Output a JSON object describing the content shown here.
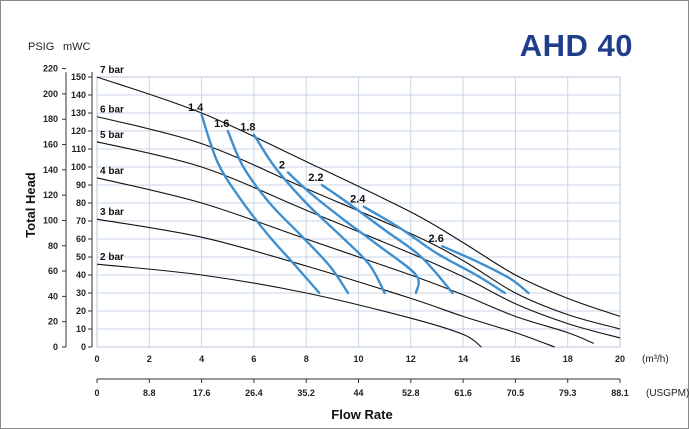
{
  "title": "AHD 40",
  "chart_data": {
    "type": "line",
    "title": "AHD 40",
    "xlabel": "Flow Rate",
    "ylabel": "Total Head",
    "x_unit_primary": "(m³/h)",
    "x_unit_secondary": "(USGPM)",
    "y_unit_psig": "PSIG",
    "y_unit_mwc": "mWC",
    "xlim": [
      0,
      20
    ],
    "ylim": [
      0,
      150
    ],
    "x_ticks_m3h": [
      "0",
      "2",
      "4",
      "6",
      "8",
      "10",
      "12",
      "14",
      "16",
      "18",
      "20"
    ],
    "x_ticks_usgpm": [
      "0",
      "8.8",
      "17.6",
      "26.4",
      "35.2",
      "44",
      "52.8",
      "61.6",
      "70.5",
      "79.3",
      "88.1"
    ],
    "y_ticks_mwc": [
      "0",
      "10",
      "20",
      "30",
      "40",
      "50",
      "60",
      "70",
      "80",
      "90",
      "100",
      "110",
      "120",
      "130",
      "140",
      "150"
    ],
    "y_ticks_psig": [
      "0",
      "20",
      "40",
      "60",
      "80",
      "100",
      "120",
      "140",
      "160",
      "180",
      "200",
      "220"
    ],
    "grid": true,
    "pressure_series": [
      {
        "name": "7 bar",
        "points": [
          [
            0,
            150
          ],
          [
            4,
            130
          ],
          [
            8,
            103
          ],
          [
            12,
            75
          ],
          [
            14,
            58
          ],
          [
            16,
            40
          ],
          [
            18,
            27
          ],
          [
            20,
            17
          ]
        ]
      },
      {
        "name": "6 bar",
        "points": [
          [
            0,
            128
          ],
          [
            4,
            113
          ],
          [
            8,
            88
          ],
          [
            12,
            63
          ],
          [
            14,
            48
          ],
          [
            16,
            30
          ],
          [
            18,
            18
          ],
          [
            20,
            10
          ]
        ]
      },
      {
        "name": "5 bar",
        "points": [
          [
            0,
            114
          ],
          [
            4,
            100
          ],
          [
            8,
            76
          ],
          [
            12,
            52
          ],
          [
            14,
            39
          ],
          [
            16,
            24
          ],
          [
            18,
            13
          ],
          [
            20,
            5
          ]
        ]
      },
      {
        "name": "4 bar",
        "points": [
          [
            0,
            94
          ],
          [
            4,
            80
          ],
          [
            8,
            60
          ],
          [
            12,
            40
          ],
          [
            14,
            29
          ],
          [
            16,
            17
          ],
          [
            18,
            8
          ],
          [
            19,
            2
          ]
        ]
      },
      {
        "name": "3 bar",
        "points": [
          [
            0,
            71
          ],
          [
            4,
            61
          ],
          [
            8,
            45
          ],
          [
            12,
            27
          ],
          [
            14,
            17
          ],
          [
            16,
            8
          ],
          [
            17.5,
            0
          ]
        ]
      },
      {
        "name": "2 bar",
        "points": [
          [
            0,
            46
          ],
          [
            4,
            40
          ],
          [
            8,
            30
          ],
          [
            12,
            16
          ],
          [
            14,
            7
          ],
          [
            14.7,
            0
          ]
        ]
      }
    ],
    "air_consumption_series": [
      {
        "name": "1.4",
        "points": [
          [
            4,
            129
          ],
          [
            4.6,
            103
          ],
          [
            5.4,
            84
          ],
          [
            6.5,
            63
          ],
          [
            7.6,
            45
          ],
          [
            8.5,
            30
          ]
        ]
      },
      {
        "name": "1.6",
        "points": [
          [
            5,
            120
          ],
          [
            5.6,
            100
          ],
          [
            6.6,
            80
          ],
          [
            7.8,
            62
          ],
          [
            8.9,
            45
          ],
          [
            9.6,
            30
          ]
        ]
      },
      {
        "name": "1.8",
        "points": [
          [
            6,
            118
          ],
          [
            6.8,
            100
          ],
          [
            8.0,
            80
          ],
          [
            9.3,
            62
          ],
          [
            10.4,
            46
          ],
          [
            11.0,
            30
          ]
        ]
      },
      {
        "name": "2",
        "points": [
          [
            7.3,
            97
          ],
          [
            8.2,
            85
          ],
          [
            9.5,
            70
          ],
          [
            10.8,
            56
          ],
          [
            12.2,
            40
          ],
          [
            12.2,
            30
          ]
        ]
      },
      {
        "name": "2.2",
        "points": [
          [
            8.6,
            90
          ],
          [
            9.6,
            80
          ],
          [
            11.0,
            65
          ],
          [
            12.4,
            50
          ],
          [
            13.6,
            30
          ]
        ]
      },
      {
        "name": "2.4",
        "points": [
          [
            10.2,
            78
          ],
          [
            11.6,
            66
          ],
          [
            13.0,
            52
          ],
          [
            14.5,
            40
          ],
          [
            15.6,
            30
          ]
        ]
      },
      {
        "name": "2.6",
        "points": [
          [
            13.2,
            56
          ],
          [
            14.6,
            47
          ],
          [
            15.8,
            38
          ],
          [
            16.5,
            30
          ]
        ]
      }
    ]
  }
}
